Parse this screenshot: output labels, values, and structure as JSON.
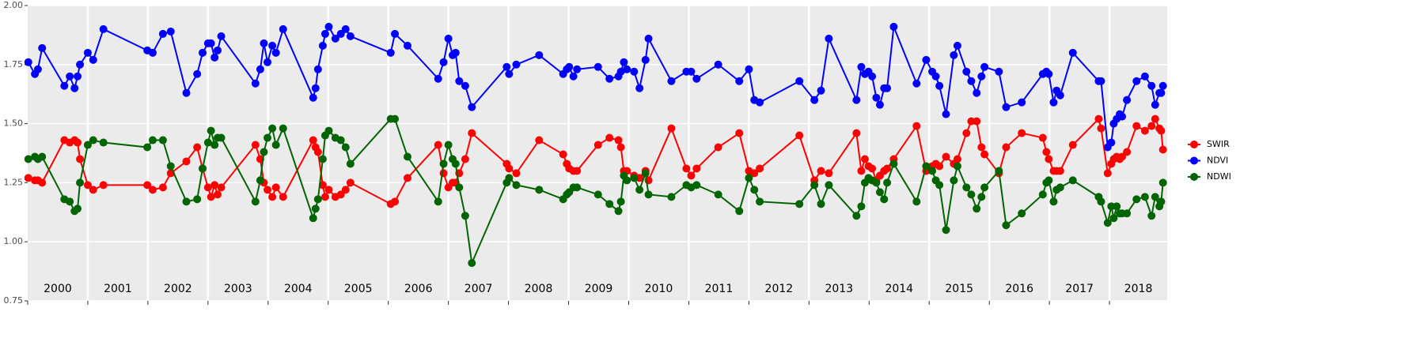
{
  "chart_data": {
    "type": "line",
    "x": [
      2000.01,
      2000.12,
      2000.17,
      2000.24,
      2000.61,
      2000.7,
      2000.78,
      2000.83,
      2000.87,
      2001.0,
      2001.09,
      2001.26,
      2001.99,
      2002.08,
      2002.25,
      2002.38,
      2002.64,
      2002.82,
      2002.91,
      2003.0,
      2003.05,
      2003.11,
      2003.16,
      2003.22,
      2003.79,
      2003.87,
      2003.93,
      2003.99,
      2004.07,
      2004.13,
      2004.25,
      2004.75,
      2004.79,
      2004.83,
      2004.91,
      2004.95,
      2005.01,
      2005.12,
      2005.21,
      2005.29,
      2005.37,
      2006.04,
      2006.11,
      2006.32,
      2006.83,
      2006.92,
      2007.0,
      2007.07,
      2007.12,
      2007.18,
      2007.28,
      2007.39,
      2007.97,
      2008.01,
      2008.13,
      2008.51,
      2008.91,
      2008.97,
      2009.01,
      2009.08,
      2009.14,
      2009.49,
      2009.68,
      2009.83,
      2009.87,
      2009.92,
      2009.97,
      2010.09,
      2010.18,
      2010.28,
      2010.33,
      2010.71,
      2010.96,
      2011.04,
      2011.13,
      2011.49,
      2011.84,
      2012.0,
      2012.09,
      2012.18,
      2012.84,
      2013.09,
      2013.2,
      2013.33,
      2013.79,
      2013.87,
      2013.93,
      2013.99,
      2014.05,
      2014.12,
      2014.18,
      2014.25,
      2014.3,
      2014.41,
      2014.79,
      2014.95,
      2015.05,
      2015.11,
      2015.17,
      2015.28,
      2015.41,
      2015.47,
      2015.62,
      2015.7,
      2015.79,
      2015.87,
      2015.92,
      2016.16,
      2016.28,
      2016.54,
      2016.89,
      2016.95,
      2016.99,
      2017.07,
      2017.12,
      2017.18,
      2017.39,
      2017.82,
      2017.86,
      2017.97,
      2018.03,
      2018.07,
      2018.12,
      2018.17,
      2018.21,
      2018.29,
      2018.45,
      2018.59,
      2018.7,
      2018.76,
      2018.83,
      2018.86,
      2018.89
    ],
    "series": [
      {
        "name": "SWIR",
        "color": "#ff0000",
        "values": [
          1.27,
          1.26,
          1.26,
          1.25,
          1.43,
          1.42,
          1.43,
          1.42,
          1.35,
          1.24,
          1.22,
          1.24,
          1.24,
          1.22,
          1.23,
          1.29,
          1.34,
          1.4,
          1.31,
          1.23,
          1.19,
          1.24,
          1.2,
          1.23,
          1.41,
          1.35,
          1.25,
          1.22,
          1.19,
          1.23,
          1.19,
          1.43,
          1.4,
          1.38,
          1.24,
          1.19,
          1.22,
          1.19,
          1.2,
          1.22,
          1.25,
          1.16,
          1.17,
          1.27,
          1.41,
          1.29,
          1.23,
          1.25,
          1.25,
          1.29,
          1.35,
          1.46,
          1.33,
          1.31,
          1.29,
          1.43,
          1.37,
          1.33,
          1.31,
          1.3,
          1.3,
          1.41,
          1.44,
          1.43,
          1.4,
          1.3,
          1.3,
          1.28,
          1.27,
          1.3,
          1.26,
          1.48,
          1.31,
          1.28,
          1.31,
          1.4,
          1.46,
          1.3,
          1.29,
          1.31,
          1.45,
          1.26,
          1.3,
          1.29,
          1.46,
          1.3,
          1.35,
          1.32,
          1.31,
          1.26,
          1.28,
          1.3,
          1.31,
          1.35,
          1.49,
          1.3,
          1.32,
          1.33,
          1.32,
          1.36,
          1.33,
          1.35,
          1.46,
          1.51,
          1.51,
          1.4,
          1.37,
          1.29,
          1.4,
          1.46,
          1.44,
          1.38,
          1.35,
          1.3,
          1.3,
          1.3,
          1.41,
          1.52,
          1.48,
          1.29,
          1.33,
          1.35,
          1.36,
          1.35,
          1.36,
          1.38,
          1.49,
          1.47,
          1.49,
          1.52,
          1.48,
          1.47,
          1.39
        ]
      },
      {
        "name": "NDVI",
        "color": "#0000ff",
        "values": [
          1.76,
          1.71,
          1.73,
          1.82,
          1.66,
          1.7,
          1.65,
          1.7,
          1.75,
          1.8,
          1.77,
          1.9,
          1.81,
          1.8,
          1.88,
          1.89,
          1.63,
          1.71,
          1.8,
          1.84,
          1.84,
          1.78,
          1.81,
          1.87,
          1.67,
          1.73,
          1.84,
          1.76,
          1.83,
          1.8,
          1.9,
          1.61,
          1.65,
          1.73,
          1.83,
          1.88,
          1.91,
          1.86,
          1.88,
          1.9,
          1.87,
          1.8,
          1.88,
          1.83,
          1.69,
          1.76,
          1.86,
          1.79,
          1.8,
          1.68,
          1.66,
          1.57,
          1.74,
          1.71,
          1.75,
          1.79,
          1.71,
          1.73,
          1.74,
          1.7,
          1.73,
          1.74,
          1.69,
          1.7,
          1.72,
          1.76,
          1.73,
          1.72,
          1.65,
          1.77,
          1.86,
          1.68,
          1.72,
          1.72,
          1.69,
          1.75,
          1.68,
          1.73,
          1.6,
          1.59,
          1.68,
          1.6,
          1.64,
          1.86,
          1.6,
          1.74,
          1.71,
          1.72,
          1.7,
          1.61,
          1.58,
          1.65,
          1.65,
          1.91,
          1.67,
          1.77,
          1.72,
          1.7,
          1.66,
          1.54,
          1.79,
          1.83,
          1.72,
          1.68,
          1.63,
          1.7,
          1.74,
          1.72,
          1.57,
          1.59,
          1.71,
          1.72,
          1.71,
          1.59,
          1.64,
          1.62,
          1.8,
          1.68,
          1.68,
          1.4,
          1.42,
          1.5,
          1.52,
          1.54,
          1.53,
          1.6,
          1.68,
          1.7,
          1.66,
          1.58,
          1.63,
          1.63,
          1.66
        ]
      },
      {
        "name": "NDWI",
        "color": "#006400",
        "values": [
          1.35,
          1.36,
          1.35,
          1.36,
          1.18,
          1.17,
          1.13,
          1.14,
          1.25,
          1.41,
          1.43,
          1.42,
          1.4,
          1.43,
          1.43,
          1.32,
          1.17,
          1.18,
          1.31,
          1.42,
          1.47,
          1.41,
          1.44,
          1.44,
          1.17,
          1.26,
          1.38,
          1.44,
          1.48,
          1.41,
          1.48,
          1.1,
          1.14,
          1.18,
          1.35,
          1.45,
          1.47,
          1.44,
          1.43,
          1.4,
          1.33,
          1.52,
          1.52,
          1.36,
          1.17,
          1.33,
          1.41,
          1.35,
          1.33,
          1.23,
          1.11,
          0.91,
          1.25,
          1.27,
          1.24,
          1.22,
          1.18,
          1.2,
          1.21,
          1.23,
          1.23,
          1.2,
          1.16,
          1.13,
          1.17,
          1.28,
          1.26,
          1.27,
          1.22,
          1.29,
          1.2,
          1.19,
          1.24,
          1.23,
          1.24,
          1.2,
          1.13,
          1.27,
          1.22,
          1.17,
          1.16,
          1.24,
          1.16,
          1.24,
          1.11,
          1.15,
          1.25,
          1.27,
          1.26,
          1.25,
          1.21,
          1.18,
          1.25,
          1.33,
          1.17,
          1.32,
          1.3,
          1.26,
          1.24,
          1.05,
          1.26,
          1.32,
          1.23,
          1.2,
          1.14,
          1.19,
          1.23,
          1.3,
          1.07,
          1.12,
          1.2,
          1.25,
          1.26,
          1.17,
          1.22,
          1.23,
          1.26,
          1.19,
          1.17,
          1.08,
          1.15,
          1.1,
          1.15,
          1.12,
          1.12,
          1.12,
          1.18,
          1.19,
          1.11,
          1.19,
          1.15,
          1.17,
          1.25
        ]
      }
    ],
    "xlim": [
      2000,
      2018.96
    ],
    "xticks": [
      {
        "value": 2000,
        "label": "2000"
      },
      {
        "value": 2001,
        "label": "2001"
      },
      {
        "value": 2002,
        "label": "2002"
      },
      {
        "value": 2003,
        "label": "2003"
      },
      {
        "value": 2004,
        "label": "2004"
      },
      {
        "value": 2005,
        "label": "2005"
      },
      {
        "value": 2006,
        "label": "2006"
      },
      {
        "value": 2007,
        "label": "2007"
      },
      {
        "value": 2008,
        "label": "2008"
      },
      {
        "value": 2009,
        "label": "2009"
      },
      {
        "value": 2010,
        "label": "2010"
      },
      {
        "value": 2011,
        "label": "2011"
      },
      {
        "value": 2012,
        "label": "2012"
      },
      {
        "value": 2013,
        "label": "2013"
      },
      {
        "value": 2014,
        "label": "2014"
      },
      {
        "value": 2015,
        "label": "2015"
      },
      {
        "value": 2016,
        "label": "2016"
      },
      {
        "value": 2017,
        "label": "2017"
      },
      {
        "value": 2018,
        "label": "2018"
      }
    ],
    "ylim": [
      0.75,
      2.0
    ],
    "yticks": [
      {
        "value": 0.75,
        "label": "0.75"
      },
      {
        "value": 1.0,
        "label": "1.00"
      },
      {
        "value": 1.25,
        "label": "1.25"
      },
      {
        "value": 1.5,
        "label": "1.50"
      },
      {
        "value": 1.75,
        "label": "1.75"
      },
      {
        "value": 2.0,
        "label": "2.00"
      }
    ],
    "grid": true,
    "legend": "right"
  }
}
